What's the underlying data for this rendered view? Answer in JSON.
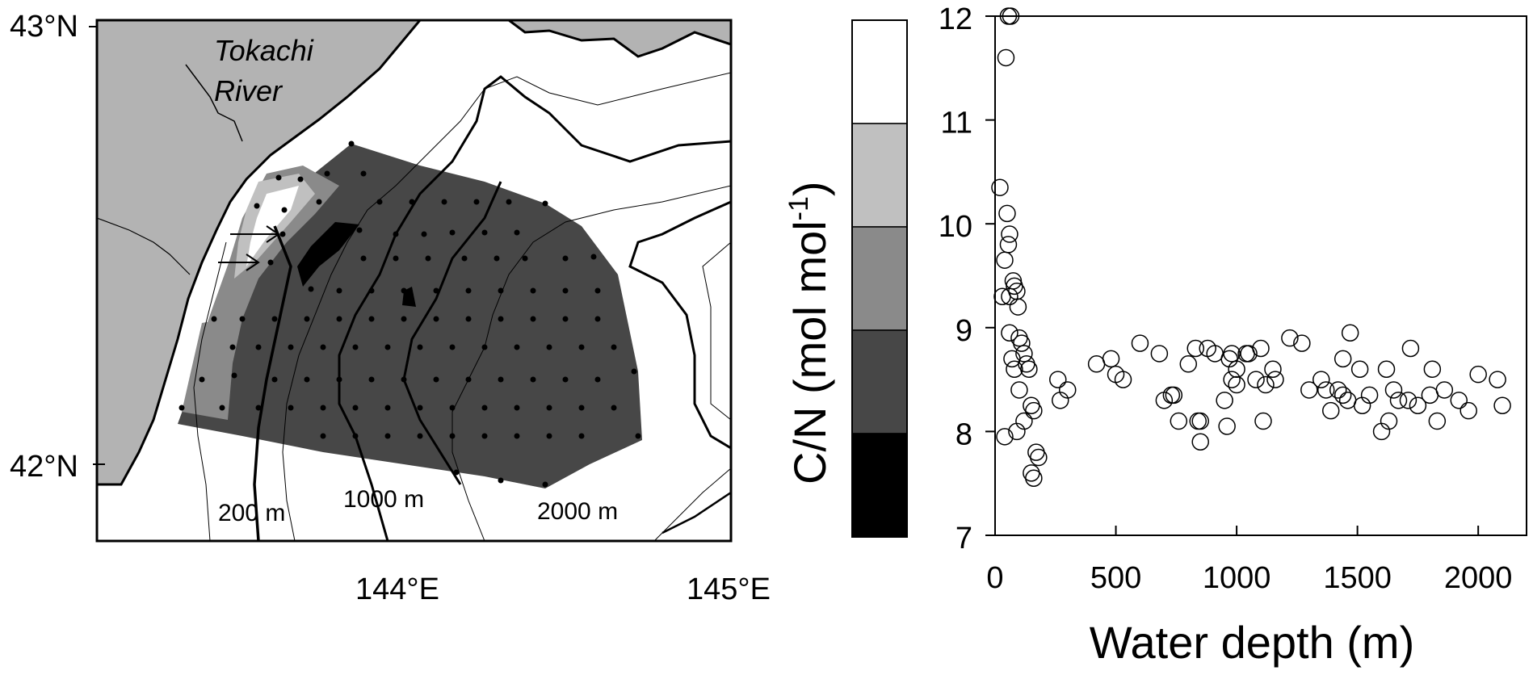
{
  "map": {
    "lat_labels": [
      "43°N",
      "42°N"
    ],
    "lon_labels": [
      "144°E",
      "145°E"
    ],
    "river_label_line1": "Tokachi",
    "river_label_line2": "River",
    "contour_labels": [
      "200 m",
      "1000 m",
      "2000 m"
    ]
  },
  "colorbar": {
    "title_main": "C/N (mol mol",
    "title_sup": "-1",
    "title_close": ")",
    "ticks": [
      "12",
      "11",
      "10",
      "9",
      "8",
      "7"
    ],
    "bins": [
      {
        "from": 11,
        "to": 12,
        "color": "#ffffff"
      },
      {
        "from": 10,
        "to": 11,
        "color": "#c0c0c0"
      },
      {
        "from": 9,
        "to": 10,
        "color": "#8a8a8a"
      },
      {
        "from": 8,
        "to": 9,
        "color": "#474747"
      },
      {
        "from": 7,
        "to": 8,
        "color": "#000000"
      }
    ]
  },
  "chart_data": {
    "type": "scatter",
    "xlabel": "Water depth (m)",
    "ylabel": "C/N (mol mol-1)",
    "xlim": [
      0,
      2200
    ],
    "ylim": [
      7,
      12
    ],
    "x_ticks": [
      "0",
      "500",
      "1000",
      "1500",
      "2000"
    ],
    "y_ticks": [
      "12",
      "11",
      "10",
      "9",
      "8",
      "7"
    ],
    "marker": "open-circle",
    "x": [
      55,
      65,
      45,
      20,
      50,
      60,
      55,
      40,
      75,
      60,
      80,
      90,
      95,
      100,
      30,
      60,
      120,
      70,
      80,
      110,
      100,
      140,
      130,
      120,
      150,
      160,
      90,
      40,
      170,
      180,
      150,
      160,
      260,
      300,
      270,
      420,
      500,
      480,
      530,
      600,
      680,
      730,
      700,
      760,
      740,
      800,
      850,
      840,
      880,
      830,
      910,
      850,
      950,
      960,
      980,
      970,
      980,
      1000,
      1000,
      1050,
      1040,
      1100,
      1080,
      1120,
      1110,
      1160,
      1150,
      1220,
      1270,
      1350,
      1300,
      1370,
      1390,
      1420,
      1440,
      1460,
      1470,
      1440,
      1510,
      1550,
      1520,
      1600,
      1630,
      1650,
      1620,
      1670,
      1720,
      1710,
      1750,
      1800,
      1810,
      1830,
      1860,
      1920,
      1960,
      2000,
      2080,
      2100
    ],
    "y": [
      12.0,
      12.0,
      11.6,
      10.35,
      10.1,
      9.9,
      9.8,
      9.65,
      9.45,
      9.3,
      9.4,
      9.35,
      9.2,
      8.9,
      9.3,
      8.95,
      8.75,
      8.7,
      8.6,
      8.85,
      8.4,
      8.6,
      8.65,
      8.1,
      8.25,
      8.2,
      8.0,
      7.95,
      7.8,
      7.75,
      7.6,
      7.55,
      8.5,
      8.4,
      8.3,
      8.65,
      8.55,
      8.7,
      8.5,
      8.85,
      8.75,
      8.35,
      8.3,
      8.1,
      8.35,
      8.65,
      7.9,
      8.1,
      8.8,
      8.8,
      8.75,
      8.1,
      8.3,
      8.05,
      8.75,
      8.7,
      8.5,
      8.45,
      8.6,
      8.75,
      8.75,
      8.8,
      8.5,
      8.45,
      8.1,
      8.5,
      8.6,
      8.9,
      8.85,
      8.5,
      8.4,
      8.4,
      8.2,
      8.4,
      8.35,
      8.3,
      8.95,
      8.7,
      8.6,
      8.35,
      8.25,
      8.0,
      8.1,
      8.4,
      8.6,
      8.3,
      8.8,
      8.3,
      8.25,
      8.35,
      8.6,
      8.1,
      8.4,
      8.3,
      8.2,
      8.55,
      8.5,
      8.25
    ]
  }
}
